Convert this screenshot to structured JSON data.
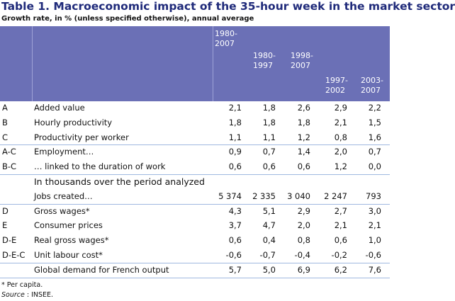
{
  "title": "Table 1. Macroeconomic impact of the 35-hour week in the market sector",
  "subtitle": "Growth rate, in % (unless specified otherwise), annual average",
  "header": {
    "columns": [
      "1980-2007",
      "1980-1997",
      "1998-2007",
      "1997-2002",
      "2003-2007"
    ]
  },
  "rows": [
    {
      "code": "A",
      "label": "Added value",
      "values": [
        "2,1",
        "1,8",
        "2,6",
        "2,9",
        "2,2"
      ]
    },
    {
      "code": "B",
      "label": "Hourly productivity",
      "values": [
        "1,8",
        "1,8",
        "1,8",
        "2,1",
        "1,5"
      ]
    },
    {
      "code": "C",
      "label": "Productivity per worker",
      "values": [
        "1,1",
        "1,1",
        "1,2",
        "0,8",
        "1,6"
      ]
    },
    {
      "code": "A-C",
      "label": "Employment…",
      "values": [
        "0,9",
        "0,7",
        "1,4",
        "2,0",
        "0,7"
      ]
    },
    {
      "code": "B-C",
      "label": "… linked to the duration of work",
      "values": [
        "0,6",
        "0,6",
        "0,6",
        "1,2",
        "0,0"
      ]
    },
    {
      "section": "In thousands over the period analyzed"
    },
    {
      "label": "Jobs created…",
      "values": [
        "5 374",
        "2 335",
        "3 040",
        "2 247",
        "793"
      ]
    },
    {
      "code": "D",
      "label": "Gross wages*",
      "values": [
        "4,3",
        "5,1",
        "2,9",
        "2,7",
        "3,0"
      ]
    },
    {
      "code": "E",
      "label": "Consumer prices",
      "values": [
        "3,7",
        "4,7",
        "2,0",
        "2,1",
        "2,1"
      ]
    },
    {
      "code": "D-E",
      "label": "Real gross wages*",
      "values": [
        "0,6",
        "0,4",
        "0,8",
        "0,6",
        "1,0"
      ]
    },
    {
      "code": "D-E-C",
      "label": "Unit labour cost*",
      "values": [
        "-0,6",
        "-0,7",
        "-0,4",
        "-0,2",
        "-0,6"
      ]
    },
    {
      "label": "Global demand for French output",
      "values": [
        "5,7",
        "5,0",
        "6,9",
        "6,2",
        "7,6"
      ]
    }
  ],
  "footnotes": {
    "note": "* Per capita.",
    "source_label": "Source",
    "source_text": " : INSEE."
  }
}
